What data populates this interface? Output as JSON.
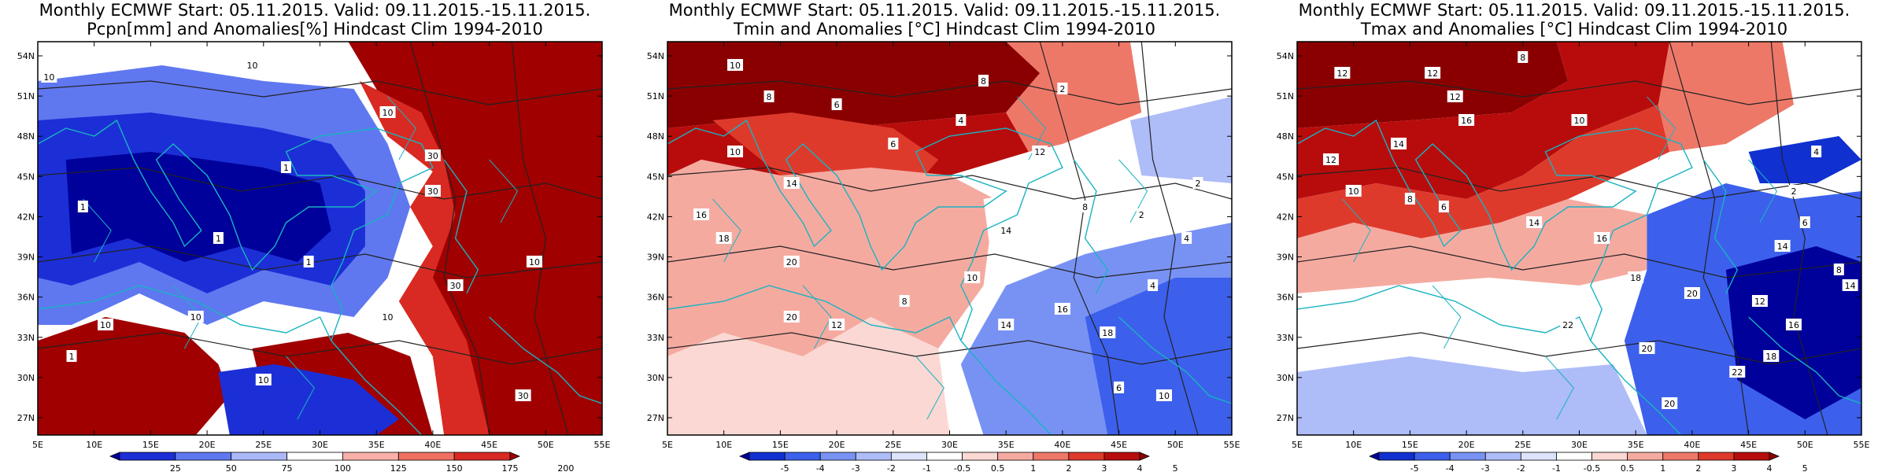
{
  "panels": [
    {
      "title_line1": "Monthly ECMWF Start: 05.11.2015. Valid: 09.11.2015.-15.11.2015.",
      "title_line2": "Pcpn[mm] and Anomalies[%] Hindcast Clim 1994-2010",
      "colorbar_ticks": [
        "25",
        "50",
        "75",
        "100",
        "125",
        "150",
        "175",
        "200"
      ],
      "colorbar_colors": [
        "#00009a",
        "#1c2fd6",
        "#5f78f0",
        "#aab8f8",
        "#ffffff",
        "#f8b0a8",
        "#f07060",
        "#d82a22",
        "#a00000"
      ],
      "contour_labels": [
        "10",
        "10",
        "10",
        "30",
        "30",
        "30",
        "1",
        "1",
        "1",
        "1",
        "10",
        "10",
        "10",
        "1",
        "10",
        "10",
        "30"
      ]
    },
    {
      "title_line1": "Monthly ECMWF Start: 05.11.2015. Valid: 09.11.2015.-15.11.2015.",
      "title_line2": "Tmin and Anomalies [°C] Hindcast Clim 1994-2010",
      "colorbar_ticks": [
        "-5",
        "-4",
        "-3",
        "-2",
        "-1",
        "-0.5",
        "0.5",
        "1",
        "2",
        "3",
        "4",
        "5"
      ],
      "colorbar_colors": [
        "#00009a",
        "#1030d0",
        "#3c60ec",
        "#7892f4",
        "#aebcf8",
        "#dde3fb",
        "#ffffff",
        "#fbd8d3",
        "#f5aaa0",
        "#ee7868",
        "#de3a2c",
        "#b80c0c",
        "#8a0000"
      ],
      "contour_labels": [
        "10",
        "8",
        "6",
        "8",
        "4",
        "2",
        "6",
        "10",
        "14",
        "12",
        "16",
        "18",
        "20",
        "14",
        "10",
        "8",
        "2",
        "4",
        "8",
        "12",
        "14",
        "16",
        "18",
        "20",
        "6",
        "10",
        "2",
        "4"
      ]
    },
    {
      "title_line1": "Monthly ECMWF Start: 05.11.2015. Valid: 09.11.2015.-15.11.2015.",
      "title_line2": "Tmax and Anomalies [°C] Hindcast Clim 1994-2010",
      "colorbar_ticks": [
        "-5",
        "-4",
        "-3",
        "-2",
        "-1",
        "-0.5",
        "0.5",
        "1",
        "2",
        "3",
        "4",
        "5"
      ],
      "colorbar_colors": [
        "#00009a",
        "#1030d0",
        "#3c60ec",
        "#7892f4",
        "#aebcf8",
        "#dde3fb",
        "#ffffff",
        "#fbd8d3",
        "#f5aaa0",
        "#ee7868",
        "#de3a2c",
        "#b80c0c",
        "#8a0000"
      ],
      "contour_labels": [
        "12",
        "12",
        "8",
        "10",
        "12",
        "16",
        "14",
        "12",
        "10",
        "8",
        "6",
        "14",
        "16",
        "18",
        "20",
        "22",
        "20",
        "14",
        "12",
        "16",
        "18",
        "20",
        "22",
        "6",
        "8",
        "2",
        "4",
        "14"
      ]
    }
  ],
  "map_axes": {
    "lat_labels": [
      "54N",
      "51N",
      "48N",
      "45N",
      "42N",
      "39N",
      "36N",
      "33N",
      "30N",
      "27N"
    ],
    "lon_labels": [
      "5E",
      "10E",
      "15E",
      "20E",
      "25E",
      "30E",
      "35E",
      "40E",
      "45E",
      "50E",
      "55E"
    ]
  }
}
